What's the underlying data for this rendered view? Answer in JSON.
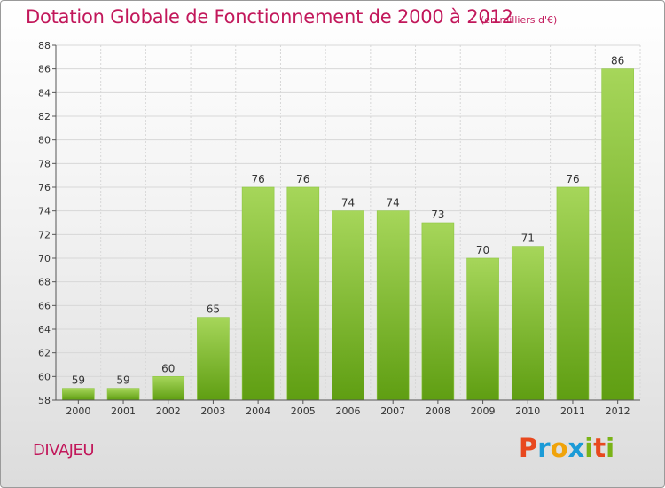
{
  "header": {
    "title": "Dotation Globale de Fonctionnement de 2000 à 2012",
    "unit": "(en milliers d'€)"
  },
  "footer": {
    "commune": "DIVAJEU",
    "brand": [
      "P",
      "r",
      "o",
      "x",
      "i",
      "t",
      "i"
    ],
    "brand_colors": [
      "#e8481e",
      "#1b9bd7",
      "#f0a30a",
      "#1b9bd7",
      "#7ab317",
      "#e8481e",
      "#7ab317"
    ]
  },
  "colors": {
    "title": "#c2185b",
    "bar_top": "#a6d65a",
    "bar_bottom": "#5f9e12",
    "grid": "#d7d7d7"
  },
  "chart_data": {
    "type": "bar",
    "title": "Dotation Globale de Fonctionnement de 2000 à 2012",
    "subtitle": "(en milliers d'€)",
    "xlabel": "",
    "ylabel": "",
    "categories": [
      "2000",
      "2001",
      "2002",
      "2003",
      "2004",
      "2005",
      "2006",
      "2007",
      "2008",
      "2009",
      "2010",
      "2011",
      "2012"
    ],
    "values": [
      59,
      59,
      60,
      65,
      76,
      76,
      74,
      74,
      73,
      70,
      71,
      76,
      86
    ],
    "ylim": [
      58,
      88
    ],
    "yticks": [
      58,
      60,
      62,
      64,
      66,
      68,
      70,
      72,
      74,
      76,
      78,
      80,
      82,
      84,
      86,
      88
    ],
    "data_labels": true,
    "grid": true,
    "legend": "none"
  }
}
